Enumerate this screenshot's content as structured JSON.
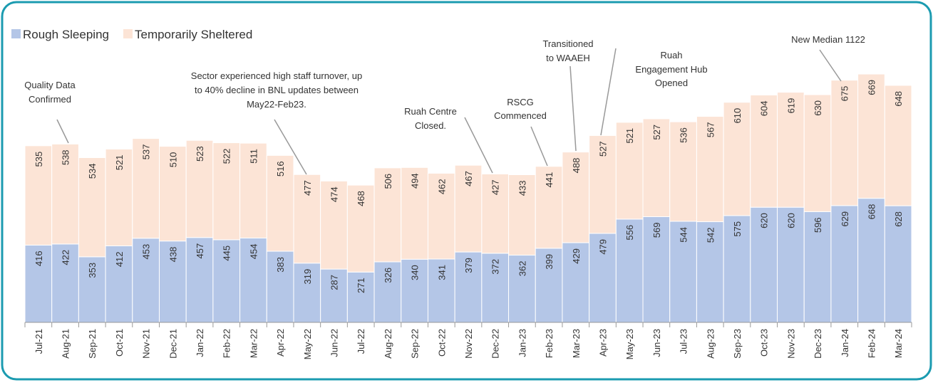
{
  "chart_data": {
    "type": "stacked_bar",
    "categories": [
      "Jul-21",
      "Aug-21",
      "Sep-21",
      "Oct-21",
      "Nov-21",
      "Dec-21",
      "Jan-22",
      "Feb-22",
      "Mar-22",
      "Apr-22",
      "May-22",
      "Jun-22",
      "Jul-22",
      "Aug-22",
      "Sep-22",
      "Oct-22",
      "Nov-22",
      "Dec-22",
      "Jan-23",
      "Feb-23",
      "Mar-23",
      "Apr-23",
      "May-23",
      "Jun-23",
      "Jul-23",
      "Aug-23",
      "Sep-23",
      "Oct-23",
      "Nov-23",
      "Dec-23",
      "Jan-24",
      "Feb-24",
      "Mar-24"
    ],
    "series": [
      {
        "name": "Rough Sleeping",
        "color": "#b4c6e7",
        "values": [
          416,
          422,
          353,
          412,
          453,
          438,
          457,
          445,
          454,
          383,
          319,
          287,
          271,
          326,
          340,
          341,
          379,
          372,
          362,
          399,
          429,
          479,
          556,
          569,
          544,
          542,
          575,
          620,
          620,
          596,
          629,
          668,
          628
        ]
      },
      {
        "name": "Temporarily Sheltered",
        "color": "#fce4d6",
        "values": [
          535,
          538,
          534,
          521,
          537,
          510,
          523,
          522,
          511,
          516,
          477,
          474,
          468,
          506,
          494,
          462,
          467,
          427,
          433,
          441,
          488,
          527,
          521,
          527,
          536,
          567,
          610,
          604,
          619,
          630,
          675,
          669,
          648
        ]
      }
    ],
    "annotations": [
      [
        "Quality Data",
        "Confirmed"
      ],
      [
        "Sector experienced high staff turnover, up",
        "to 40% decline in BNL updates between",
        "May22-Feb23."
      ],
      [
        "Ruah Centre",
        "Closed."
      ],
      [
        "RSCG",
        "Commenced"
      ],
      [
        "Transitioned",
        "to WAAEH"
      ],
      [
        "Ruah",
        "Engagement Hub",
        "Opened"
      ],
      [
        "New Median 1122"
      ]
    ]
  }
}
